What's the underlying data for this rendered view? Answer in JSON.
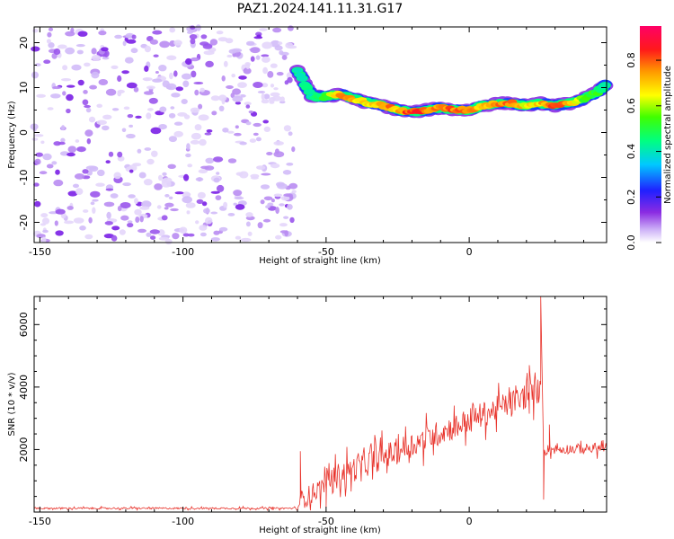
{
  "title": "PAZ1.2024.141.11.31.G17",
  "chart_data": [
    {
      "type": "heatmap",
      "xlabel": "Height of straight line (km)",
      "ylabel": "Frequency (Hz)",
      "xlim": [
        -152,
        48
      ],
      "ylim": [
        -24.5,
        23.5
      ],
      "xticks": [
        -150,
        -100,
        -50,
        0
      ],
      "yticks": [
        -20,
        -10,
        0,
        10,
        20
      ],
      "noise_region_x": [
        -152,
        -61
      ],
      "colorbar": {
        "label": "Normalized spectral amplitude",
        "ticks": [
          0.0,
          0.2,
          0.4,
          0.6,
          0.8
        ],
        "range": [
          0.0,
          0.95
        ]
      },
      "ridge": [
        {
          "x": -60,
          "y": 14,
          "amp": 0.45
        },
        {
          "x": -55,
          "y": 8,
          "amp": 0.45
        },
        {
          "x": -50,
          "y": 8,
          "amp": 0.55
        },
        {
          "x": -45,
          "y": 8.5,
          "amp": 0.8
        },
        {
          "x": -40,
          "y": 7.5,
          "amp": 0.75
        },
        {
          "x": -35,
          "y": 6.5,
          "amp": 0.7
        },
        {
          "x": -30,
          "y": 6,
          "amp": 0.85
        },
        {
          "x": -25,
          "y": 5,
          "amp": 0.75
        },
        {
          "x": -20,
          "y": 4.5,
          "amp": 0.9
        },
        {
          "x": -15,
          "y": 5,
          "amp": 0.85
        },
        {
          "x": -10,
          "y": 5.5,
          "amp": 0.8
        },
        {
          "x": -5,
          "y": 5,
          "amp": 0.85
        },
        {
          "x": 0,
          "y": 5,
          "amp": 0.8
        },
        {
          "x": 5,
          "y": 6,
          "amp": 0.75
        },
        {
          "x": 10,
          "y": 6.5,
          "amp": 0.8
        },
        {
          "x": 15,
          "y": 6.5,
          "amp": 0.85
        },
        {
          "x": 20,
          "y": 6,
          "amp": 0.7
        },
        {
          "x": 25,
          "y": 6.5,
          "amp": 0.75
        },
        {
          "x": 30,
          "y": 6,
          "amp": 0.85
        },
        {
          "x": 35,
          "y": 6.5,
          "amp": 0.8
        },
        {
          "x": 40,
          "y": 7.5,
          "amp": 0.6
        },
        {
          "x": 45,
          "y": 9,
          "amp": 0.55
        },
        {
          "x": 48,
          "y": 11,
          "amp": 0.4
        }
      ]
    },
    {
      "type": "line",
      "xlabel": "Height of straight line (km)",
      "ylabel": "SNR (10 * v/v)",
      "xlim": [
        -152,
        48
      ],
      "ylim": [
        0,
        6900
      ],
      "xticks": [
        -150,
        -100,
        -50,
        0
      ],
      "yticks": [
        2000,
        4000,
        6000
      ],
      "series": [
        {
          "color": "#e8332b",
          "segments": [
            {
              "x": [
                -152,
                -61
              ],
              "y": [
                120,
                120
              ],
              "spread": 60
            },
            {
              "x": [
                -60,
                -50
              ],
              "y": [
                300,
                900
              ],
              "spread": 700
            },
            {
              "x": [
                -50,
                25
              ],
              "y": [
                1000,
                3900
              ],
              "spread": 900
            },
            {
              "x": [
                26,
                48
              ],
              "y": [
                2000,
                2050
              ],
              "spread": 350
            }
          ],
          "events": [
            {
              "x": -59,
              "y": 1950
            },
            {
              "x": 21,
              "y": 4700
            },
            {
              "x": 25,
              "y": 6900
            },
            {
              "x": 26,
              "y": 400
            },
            {
              "x": 28,
              "y": 2800
            }
          ]
        }
      ]
    }
  ]
}
